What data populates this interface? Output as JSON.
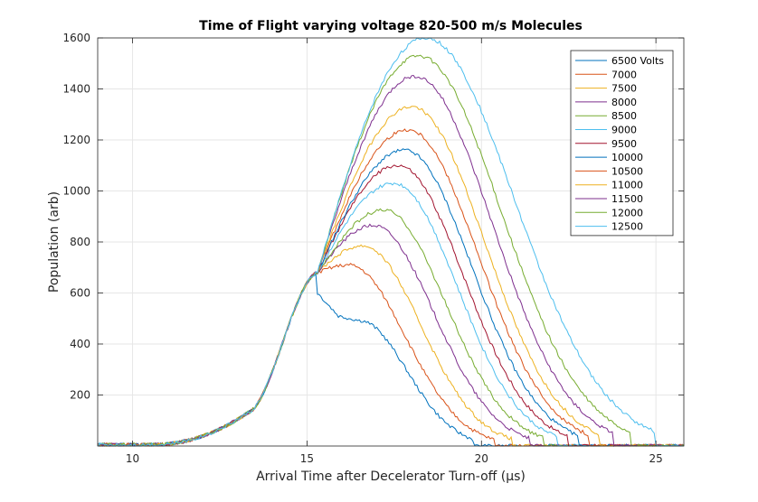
{
  "chart_data": {
    "type": "line",
    "title": "Time of Flight varying voltage 820-500 m/s Molecules",
    "xlabel": "Arrival Time after Decelerator Turn-off (μs)",
    "ylabel": "Population (arb)",
    "xlim": [
      9,
      25.8
    ],
    "ylim": [
      0,
      1600
    ],
    "xticks": [
      10,
      15,
      20,
      25
    ],
    "yticks": [
      200,
      400,
      600,
      800,
      1000,
      1200,
      1400,
      1600
    ],
    "grid": true,
    "legend_position": "top-right",
    "series": [
      {
        "name": "6500 Volts",
        "color": "#0072BD",
        "peak_x": 15.9,
        "peak": 510,
        "end_x": 19.8
      },
      {
        "name": "7000",
        "color": "#D95319",
        "peak_x": 16.2,
        "peak": 710,
        "end_x": 20.4
      },
      {
        "name": "7500",
        "color": "#EDB120",
        "peak_x": 16.6,
        "peak": 785,
        "end_x": 20.9
      },
      {
        "name": "8000",
        "color": "#7E2F8E",
        "peak_x": 16.9,
        "peak": 865,
        "end_x": 21.4
      },
      {
        "name": "8500",
        "color": "#77AC30",
        "peak_x": 17.2,
        "peak": 925,
        "end_x": 21.8
      },
      {
        "name": "9000",
        "color": "#4DBEEE",
        "peak_x": 17.5,
        "peak": 1030,
        "end_x": 22.2
      },
      {
        "name": "9500",
        "color": "#A2142F",
        "peak_x": 17.6,
        "peak": 1100,
        "end_x": 22.5
      },
      {
        "name": "10000",
        "color": "#0072BD",
        "peak_x": 17.8,
        "peak": 1160,
        "end_x": 22.8
      },
      {
        "name": "10500",
        "color": "#D95319",
        "peak_x": 17.9,
        "peak": 1240,
        "end_x": 23.1
      },
      {
        "name": "11000",
        "color": "#EDB120",
        "peak_x": 18.0,
        "peak": 1330,
        "end_x": 23.4
      },
      {
        "name": "11500",
        "color": "#7E2F8E",
        "peak_x": 18.1,
        "peak": 1450,
        "end_x": 23.8
      },
      {
        "name": "12000",
        "color": "#77AC30",
        "peak_x": 18.2,
        "peak": 1530,
        "end_x": 24.3
      },
      {
        "name": "12500",
        "color": "#4DBEEE",
        "peak_x": 18.4,
        "peak": 1600,
        "end_x": 25.0
      }
    ]
  }
}
